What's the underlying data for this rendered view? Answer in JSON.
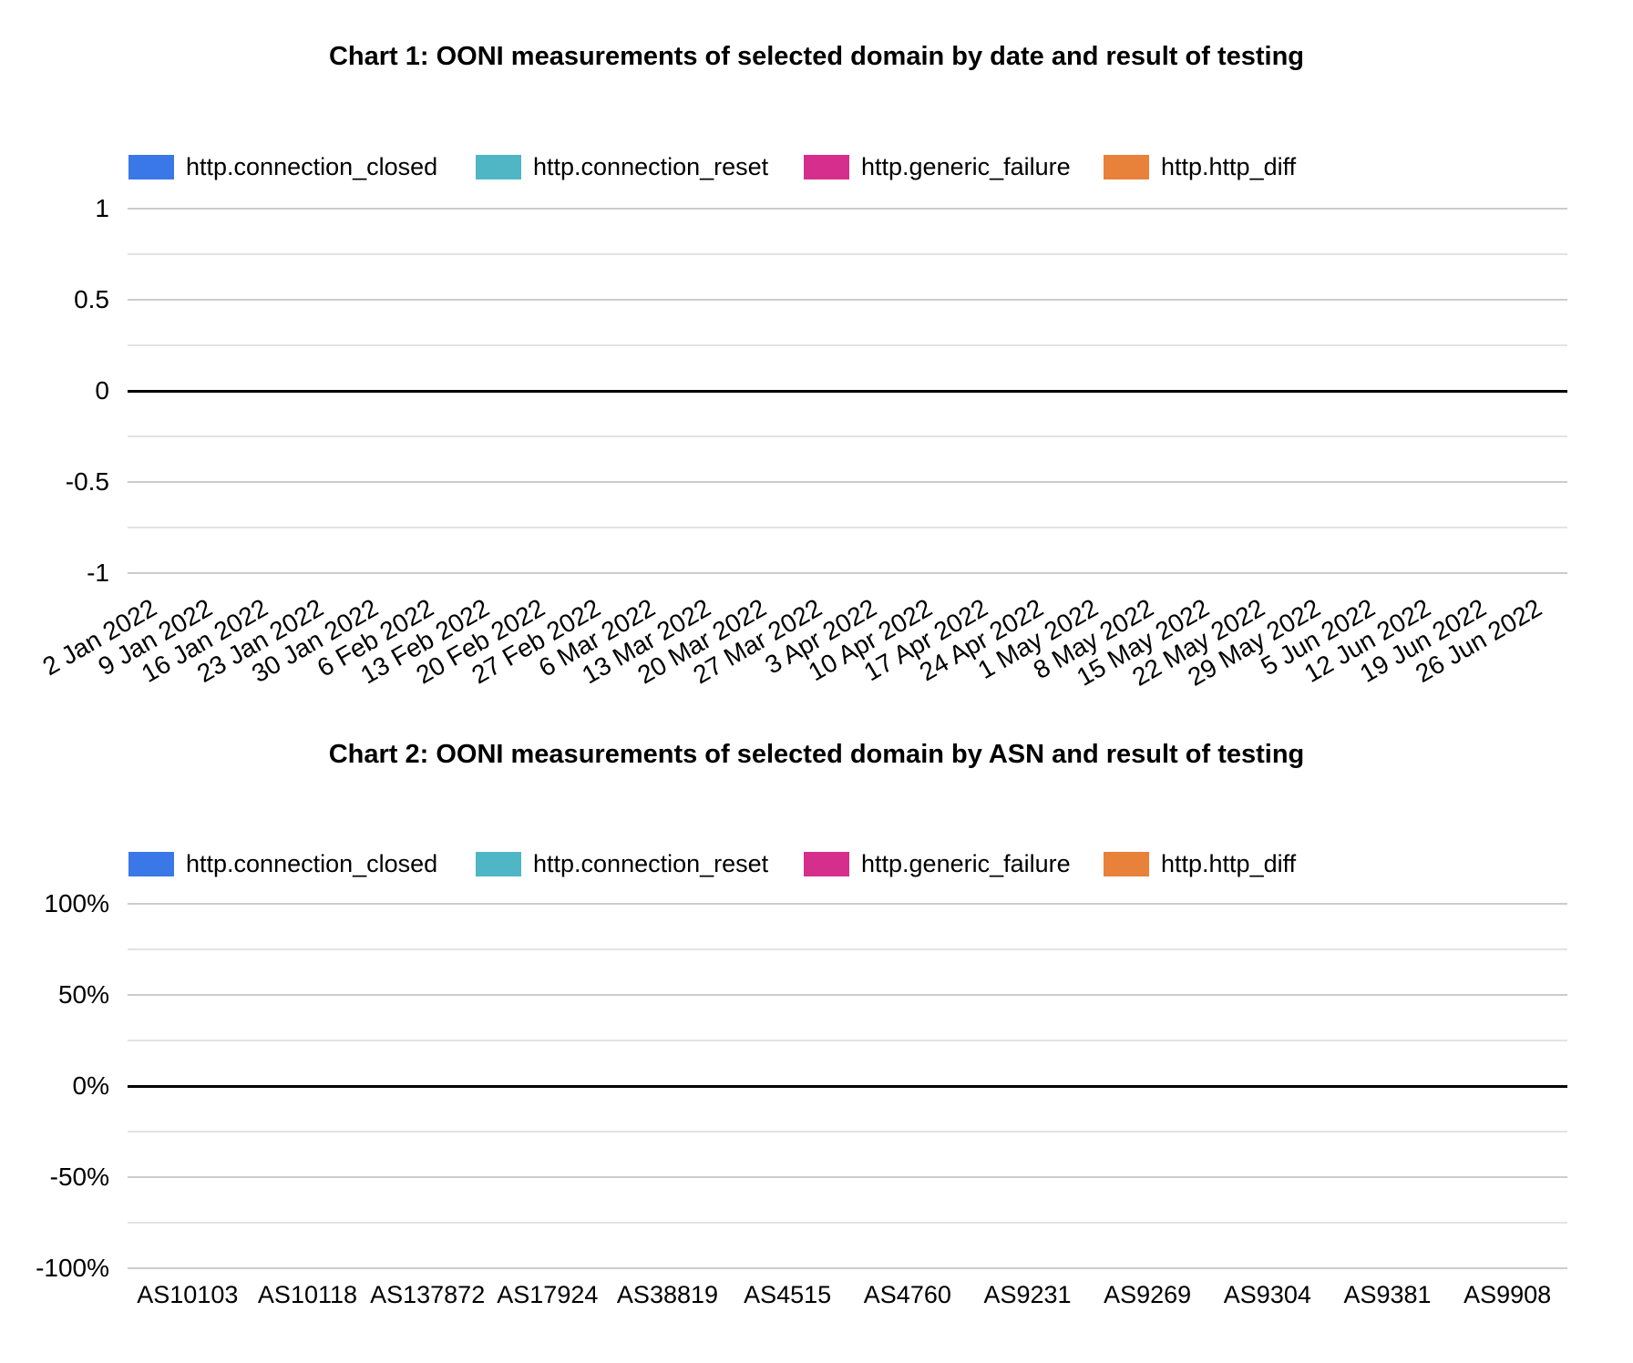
{
  "chart_data": [
    {
      "type": "bar",
      "stacked": true,
      "title": "Chart 1: OONI measurements of selected domain by date and result of testing",
      "categories": [
        "2 Jan 2022",
        "9 Jan 2022",
        "16 Jan 2022",
        "23 Jan 2022",
        "30 Jan 2022",
        "6 Feb 2022",
        "13 Feb 2022",
        "20 Feb 2022",
        "27 Feb 2022",
        "6 Mar 2022",
        "13 Mar 2022",
        "20 Mar 2022",
        "27 Mar 2022",
        "3 Apr 2022",
        "10 Apr 2022",
        "17 Apr 2022",
        "24 Apr 2022",
        "1 May 2022",
        "8 May 2022",
        "15 May 2022",
        "22 May 2022",
        "29 May 2022",
        "5 Jun 2022",
        "12 Jun 2022",
        "19 Jun 2022",
        "26 Jun 2022"
      ],
      "series": [
        {
          "name": "http.connection_closed",
          "color": "#3b78e7",
          "values": [
            0,
            0,
            0,
            0,
            0,
            0,
            0,
            0,
            0,
            0,
            0,
            0,
            0,
            0,
            0,
            0,
            0,
            0,
            0,
            0,
            0,
            0,
            0,
            0,
            0,
            0
          ]
        },
        {
          "name": "http.connection_reset",
          "color": "#4fb6c6",
          "values": [
            0,
            0,
            0,
            0,
            0,
            0,
            0,
            0,
            0,
            0,
            0,
            0,
            0,
            0,
            0,
            0,
            0,
            0,
            0,
            0,
            0,
            0,
            0,
            0,
            0,
            0
          ]
        },
        {
          "name": "http.generic_failure",
          "color": "#d62e8c",
          "values": [
            0,
            0,
            0,
            0,
            0,
            0,
            0,
            0,
            0,
            0,
            0,
            0,
            0,
            0,
            0,
            0,
            0,
            0,
            0,
            0,
            0,
            0,
            0,
            0,
            0,
            0
          ]
        },
        {
          "name": "http.http_diff",
          "color": "#e8813a",
          "values": [
            0,
            0,
            0,
            0,
            0,
            0,
            0,
            0,
            0,
            0,
            0,
            0,
            0,
            0,
            0,
            0,
            0,
            0,
            0,
            0,
            0,
            0,
            0,
            0,
            0,
            0
          ]
        }
      ],
      "ylim": [
        -1,
        1
      ],
      "yticks": [
        {
          "label": "1",
          "value": 1
        },
        {
          "label": "0.5",
          "value": 0.5
        },
        {
          "label": "0",
          "value": 0
        },
        {
          "label": "-0.5",
          "value": -0.5
        },
        {
          "label": "-1",
          "value": -1
        }
      ],
      "minor_yticks": [
        0.75,
        0.25,
        -0.25,
        -0.75
      ],
      "grid": true,
      "legend_position": "top",
      "x_label_rotation": -30
    },
    {
      "type": "bar",
      "stacked": true,
      "title": "Chart 2: OONI measurements of selected domain by ASN and result of testing",
      "categories": [
        "AS10103",
        "AS10118",
        "AS137872",
        "AS17924",
        "AS38819",
        "AS4515",
        "AS4760",
        "AS9231",
        "AS9269",
        "AS9304",
        "AS9381",
        "AS9908"
      ],
      "series": [
        {
          "name": "http.connection_closed",
          "color": "#3b78e7",
          "values": [
            0,
            0,
            0,
            0,
            0,
            0,
            0,
            0,
            0,
            0,
            0,
            0
          ]
        },
        {
          "name": "http.connection_reset",
          "color": "#4fb6c6",
          "values": [
            0,
            0,
            0,
            0,
            0,
            0,
            0,
            0,
            0,
            0,
            0,
            0
          ]
        },
        {
          "name": "http.generic_failure",
          "color": "#d62e8c",
          "values": [
            0,
            0,
            0,
            0,
            0,
            0,
            0,
            0,
            0,
            0,
            0,
            0
          ]
        },
        {
          "name": "http.http_diff",
          "color": "#e8813a",
          "values": [
            0,
            0,
            0,
            0,
            0,
            0,
            0,
            0,
            0,
            0,
            0,
            0
          ]
        }
      ],
      "ylim": [
        -100,
        100
      ],
      "yticks": [
        {
          "label": "100%",
          "value": 100
        },
        {
          "label": "50%",
          "value": 50
        },
        {
          "label": "0%",
          "value": 0
        },
        {
          "label": "-50%",
          "value": -50
        },
        {
          "label": "-100%",
          "value": -100
        }
      ],
      "minor_yticks": [
        75,
        25,
        -25,
        -75
      ],
      "grid": true,
      "legend_position": "top",
      "x_label_rotation": 0
    }
  ]
}
